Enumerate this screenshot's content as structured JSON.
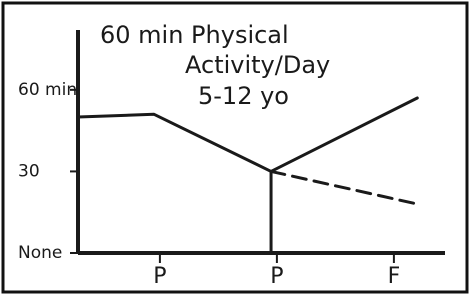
{
  "chart_data": {
    "type": "line",
    "title": [
      "60 min Physical",
      "Activity/Day"
    ],
    "subtitle": "5-12 yo",
    "xlim": [
      0,
      3.2
    ],
    "xticks": [
      {
        "value": 0.7,
        "label": "P"
      },
      {
        "value": 1.7,
        "label": "P"
      },
      {
        "value": 2.7,
        "label": "F"
      }
    ],
    "ylim": [
      0,
      82
    ],
    "yticks": [
      {
        "value": 0,
        "label": "None"
      },
      30,
      {
        "value": 60,
        "label": "60 min"
      }
    ],
    "series": [
      {
        "color": "#1a1a1a",
        "dashed": false,
        "x": [
          0,
          0.65,
          1.65,
          2.9
        ],
        "values": [
          50,
          51,
          30,
          57
        ]
      },
      {
        "color": "#1a1a1a",
        "dashed": true,
        "x": [
          1.65,
          2.9
        ],
        "values": [
          30,
          18
        ]
      },
      {
        "color": "#1a1a1a",
        "dashed": false,
        "x": [
          1.65,
          1.65
        ],
        "values": [
          30,
          0
        ]
      }
    ]
  }
}
